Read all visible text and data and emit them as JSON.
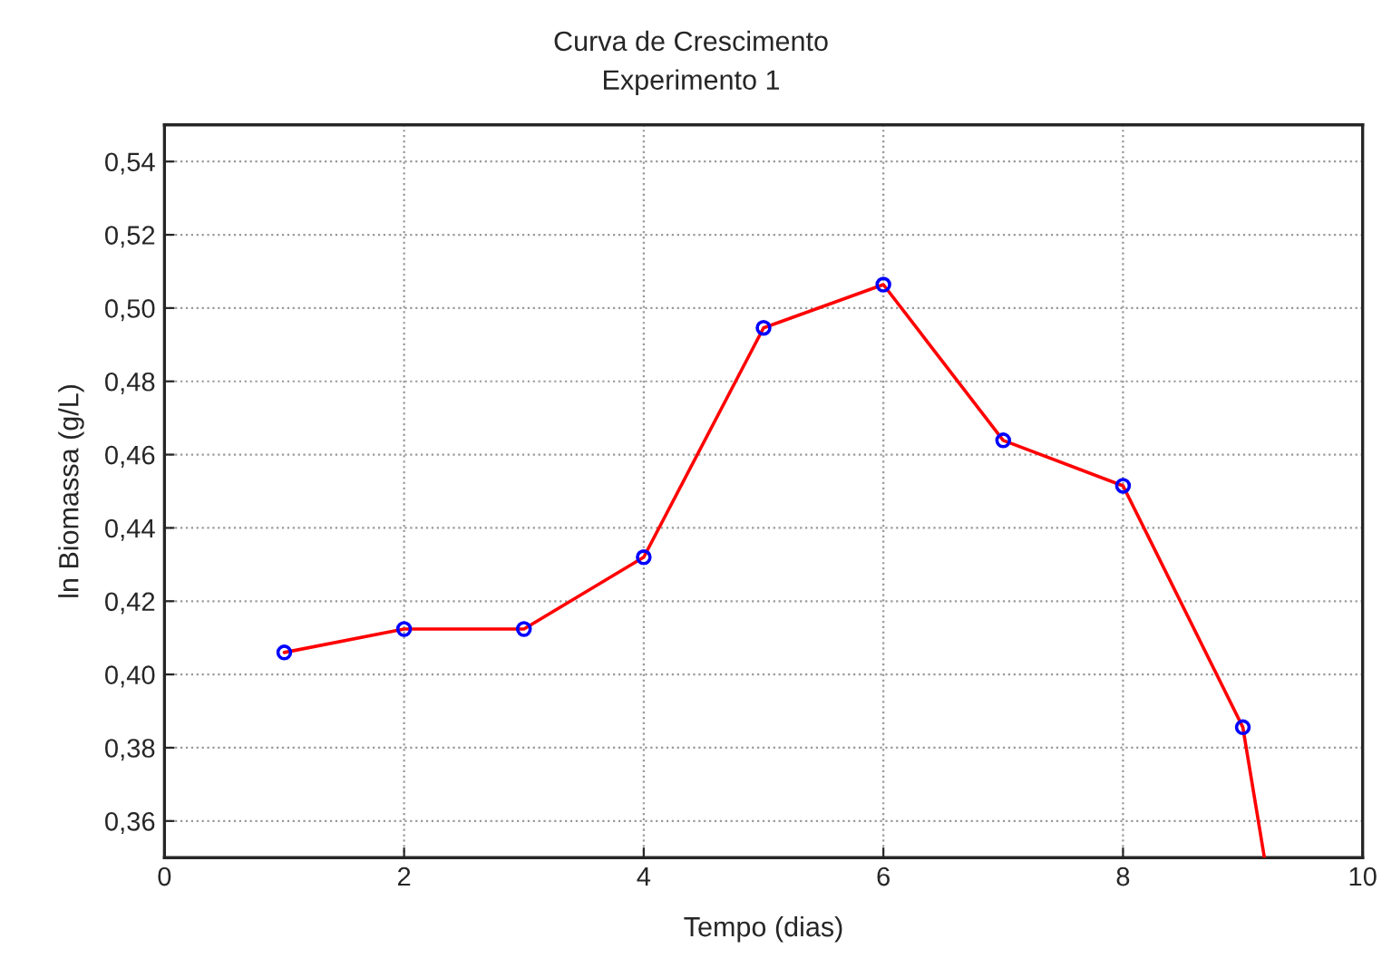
{
  "chart_data": {
    "type": "line",
    "title": "Curva de Crescimento",
    "subtitle": "Experimento 1",
    "xlabel": "Tempo (dias)",
    "ylabel": "ln Biomassa (g/L)",
    "series": [
      {
        "color": "#ff0000",
        "marker": "none",
        "x": [
          1,
          2,
          3,
          4,
          5,
          6,
          7,
          8,
          9,
          9.18
        ],
        "values": [
          0.406,
          0.4124,
          0.4124,
          0.432,
          0.4946,
          0.5064,
          0.4639,
          0.4515,
          0.3856,
          0.35
        ]
      },
      {
        "type": "scatter",
        "color": "#0000ff",
        "marker": "circle",
        "x": [
          1,
          2,
          3,
          4,
          5,
          6,
          7,
          8,
          9
        ],
        "values": [
          0.406,
          0.4124,
          0.4124,
          0.432,
          0.4946,
          0.5064,
          0.4639,
          0.4515,
          0.3856
        ]
      }
    ],
    "xlim": [
      0,
      10
    ],
    "xticks": [
      0,
      2,
      4,
      6,
      8,
      10
    ],
    "ylim": [
      0.35,
      0.55
    ],
    "yticks": [
      {
        "value": 0.36,
        "label": "0,36"
      },
      {
        "value": 0.38,
        "label": "0,38"
      },
      {
        "value": 0.4,
        "label": "0,40"
      },
      {
        "value": 0.42,
        "label": "0,42"
      },
      {
        "value": 0.44,
        "label": "0,44"
      },
      {
        "value": 0.46,
        "label": "0,46"
      },
      {
        "value": 0.48,
        "label": "0,48"
      },
      {
        "value": 0.5,
        "label": "0,50"
      },
      {
        "value": 0.52,
        "label": "0,52"
      },
      {
        "value": 0.54,
        "label": "0,54"
      }
    ],
    "grid": true
  }
}
